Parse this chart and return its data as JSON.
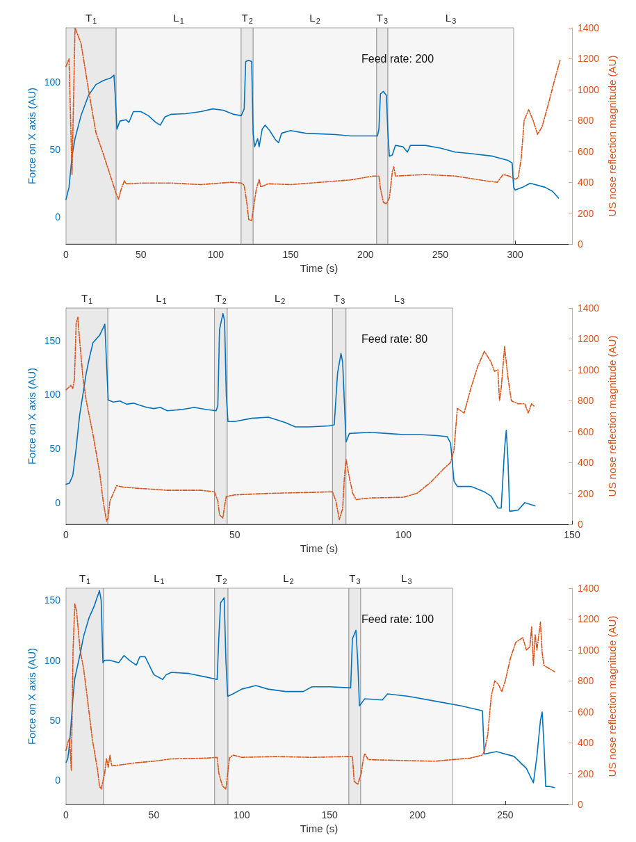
{
  "chart_data": [
    {
      "type": "line",
      "xlabel": "Time (s)",
      "ylabel": "Force on X axis (AU)",
      "y2label": "US nose reflection magnitude (AU)",
      "annotations": [
        "Feed rate: 200"
      ],
      "xlim": [
        0,
        338
      ],
      "xticks": [
        0,
        50,
        100,
        150,
        200,
        250,
        300
      ],
      "ylim": [
        -20,
        140
      ],
      "yticks": [
        0,
        50,
        100
      ],
      "y2lim": [
        0,
        1400
      ],
      "y2ticks": [
        0,
        200,
        400,
        600,
        800,
        1000,
        1200,
        1400
      ],
      "bands": [
        {
          "axis": "x",
          "from": 0,
          "to": 33.5,
          "label": "T$_{1}$"
        },
        {
          "axis": "x",
          "from": 33.5,
          "to": 117,
          "label": "L$_{1}$"
        },
        {
          "axis": "x",
          "from": 117,
          "to": 125,
          "label": "T$_{2}$"
        },
        {
          "axis": "x",
          "from": 125,
          "to": 207.5,
          "label": "L$_{2}$"
        },
        {
          "axis": "x",
          "from": 207.5,
          "to": 215,
          "label": "T$_{3}$"
        },
        {
          "axis": "x",
          "from": 215,
          "to": 299,
          "label": "L$_{3}$"
        }
      ],
      "series": [
        {
          "color": "#0072bd",
          "line_style": "solid",
          "x": [
            0,
            2,
            4,
            6,
            10,
            15,
            20,
            25,
            30,
            32,
            33,
            34,
            36,
            40,
            42,
            45,
            50,
            55,
            60,
            63,
            66,
            70,
            80,
            90,
            98,
            105,
            112,
            117,
            119,
            120,
            122,
            124,
            125,
            126,
            128,
            129,
            131,
            133,
            136,
            140,
            142,
            144,
            150,
            160,
            180,
            190,
            208,
            209,
            210,
            212,
            214,
            215,
            216,
            218,
            220,
            225,
            228,
            230,
            240,
            250,
            260,
            270,
            285,
            295,
            298,
            299,
            300,
            305,
            310,
            320,
            325,
            329
          ],
          "values": [
            13,
            22,
            45,
            58,
            75,
            90,
            98,
            101,
            103,
            105,
            88,
            65,
            71,
            72,
            70,
            78,
            78,
            75,
            70,
            68,
            74,
            76,
            76.5,
            78,
            80,
            79,
            76,
            75,
            80,
            115,
            116,
            115,
            62,
            52,
            58,
            52,
            65,
            68,
            64,
            57,
            55,
            62,
            64,
            62,
            61,
            60,
            60,
            65,
            91,
            93,
            90,
            62,
            45,
            46,
            53,
            52,
            48,
            53,
            53,
            51,
            48,
            47,
            45,
            42,
            40,
            22,
            20,
            22,
            25,
            22,
            19,
            14
          ]
        },
        {
          "color": "#d95319",
          "line_style": "dashed",
          "axis": "y2",
          "x": [
            0,
            2,
            4,
            6,
            10,
            15,
            20,
            25,
            30,
            33,
            35,
            37,
            39,
            40,
            50,
            70,
            90,
            110,
            117,
            119,
            121,
            122,
            124,
            125,
            127,
            129,
            130,
            135,
            150,
            170,
            190,
            205,
            209,
            210,
            212,
            214,
            216,
            218,
            219,
            220,
            240,
            260,
            280,
            288,
            292,
            296,
            300,
            302,
            304,
            306,
            309,
            312,
            315,
            318,
            322,
            326,
            330
          ],
          "values": [
            1150,
            1200,
            450,
            1400,
            1300,
            1000,
            720,
            580,
            430,
            340,
            290,
            360,
            410,
            390,
            395,
            395,
            385,
            400,
            395,
            380,
            250,
            160,
            150,
            220,
            350,
            420,
            370,
            390,
            385,
            400,
            415,
            440,
            440,
            360,
            270,
            260,
            300,
            470,
            500,
            440,
            450,
            440,
            410,
            400,
            450,
            440,
            420,
            430,
            550,
            800,
            870,
            800,
            710,
            760,
            900,
            1050,
            1190
          ]
        }
      ]
    },
    {
      "type": "line",
      "xlabel": "Time (s)",
      "ylabel": "Force on X axis (AU)",
      "y2label": "US nose reflection magnitude (AU)",
      "annotations": [
        "Feed rate: 80"
      ],
      "xlim": [
        0,
        150
      ],
      "xticks": [
        0,
        50,
        100,
        150
      ],
      "ylim": [
        -20,
        180
      ],
      "yticks": [
        0,
        50,
        100,
        150
      ],
      "y2lim": [
        0,
        1400
      ],
      "y2ticks": [
        0,
        200,
        400,
        600,
        800,
        1000,
        1200,
        1400
      ],
      "bands": [
        {
          "axis": "x",
          "from": 0,
          "to": 12.4,
          "label": "T$_{1}$"
        },
        {
          "axis": "x",
          "from": 12.4,
          "to": 44,
          "label": "L$_{1}$"
        },
        {
          "axis": "x",
          "from": 44,
          "to": 47.8,
          "label": "T$_{2}$"
        },
        {
          "axis": "x",
          "from": 47.8,
          "to": 79,
          "label": "L$_{2}$"
        },
        {
          "axis": "x",
          "from": 79,
          "to": 83,
          "label": "T$_{3}$"
        },
        {
          "axis": "x",
          "from": 83,
          "to": 114.6,
          "label": "L$_{3}$"
        }
      ],
      "series": [
        {
          "color": "#0072bd",
          "line_style": "solid",
          "x": [
            0,
            1,
            2,
            3,
            4,
            5,
            6,
            7,
            8,
            10,
            11.5,
            12,
            12.5,
            14,
            16,
            18,
            20,
            22,
            24,
            26,
            28,
            30,
            34,
            38,
            42,
            44.5,
            45,
            45.5,
            46.5,
            47,
            47.5,
            48,
            50,
            55,
            60,
            65,
            68,
            72,
            78,
            79.5,
            80.5,
            81.5,
            82,
            83,
            84,
            90,
            95,
            100,
            105,
            110,
            113,
            114,
            115,
            116,
            120,
            124,
            126,
            128,
            129,
            130,
            130.5,
            131,
            131.5,
            134,
            136,
            139
          ],
          "values": [
            17,
            18,
            25,
            50,
            80,
            100,
            120,
            135,
            148,
            155,
            165,
            130,
            95,
            93,
            94,
            91,
            92,
            90,
            88,
            87,
            88,
            85,
            86,
            88,
            86,
            85,
            90,
            160,
            175,
            168,
            100,
            75,
            75,
            78,
            79,
            74,
            70,
            70,
            71,
            72,
            120,
            138,
            130,
            56,
            64,
            65,
            64,
            63,
            63,
            62,
            61,
            55,
            20,
            15,
            15,
            10,
            6,
            -5,
            -5,
            50,
            67,
            40,
            -8,
            -7,
            0,
            -3
          ]
        },
        {
          "color": "#d95319",
          "line_style": "dashed",
          "axis": "y2",
          "x": [
            0,
            1.5,
            2,
            2.5,
            3,
            3.5,
            4,
            5,
            6,
            8,
            10,
            11,
            12,
            12.5,
            13,
            14,
            15,
            17,
            20,
            30,
            40,
            44,
            45,
            45.5,
            46.5,
            47,
            47.5,
            50,
            60,
            70,
            79,
            80,
            81,
            82,
            82.5,
            83,
            84,
            85,
            86,
            90,
            100,
            104,
            108,
            112,
            114,
            115,
            116,
            118,
            120,
            122,
            124,
            126,
            127,
            128,
            128.5,
            129,
            130,
            131,
            132,
            134,
            136,
            137,
            138,
            139
          ],
          "values": [
            870,
            900,
            880,
            940,
            1300,
            1340,
            1200,
            950,
            800,
            580,
            330,
            150,
            20,
            40,
            150,
            200,
            250,
            240,
            235,
            220,
            220,
            210,
            150,
            60,
            40,
            120,
            180,
            190,
            200,
            205,
            210,
            150,
            30,
            100,
            300,
            420,
            300,
            200,
            160,
            170,
            175,
            200,
            270,
            360,
            400,
            480,
            750,
            720,
            880,
            1020,
            1120,
            1050,
            990,
            1000,
            800,
            880,
            1150,
            950,
            800,
            780,
            780,
            720,
            780,
            760
          ]
        }
      ]
    },
    {
      "type": "line",
      "xlabel": "Time (s)",
      "ylabel": "Force on X axis (AU)",
      "y2label": "US nose reflection magnitude (AU)",
      "annotations": [
        "Feed rate: 100"
      ],
      "xlim": [
        0,
        288
      ],
      "xticks": [
        0,
        50,
        100,
        150,
        200,
        250
      ],
      "ylim": [
        -20,
        160
      ],
      "yticks": [
        0,
        50,
        100,
        150
      ],
      "y2lim": [
        0,
        1400
      ],
      "y2ticks": [
        0,
        200,
        400,
        600,
        800,
        1000,
        1200,
        1400
      ],
      "bands": [
        {
          "axis": "x",
          "from": 0,
          "to": 21.4,
          "label": "T$_{1}$"
        },
        {
          "axis": "x",
          "from": 21.4,
          "to": 84.6,
          "label": "L$_{1}$"
        },
        {
          "axis": "x",
          "from": 84.6,
          "to": 92.2,
          "label": "T$_{2}$"
        },
        {
          "axis": "x",
          "from": 92.2,
          "to": 161,
          "label": "L$_{2}$"
        },
        {
          "axis": "x",
          "from": 161,
          "to": 167.7,
          "label": "T$_{3}$"
        },
        {
          "axis": "x",
          "from": 167.7,
          "to": 220,
          "label": "L$_{3}$"
        }
      ],
      "series": [
        {
          "color": "#0072bd",
          "line_style": "solid",
          "x": [
            0,
            1,
            2,
            3,
            4,
            5,
            8,
            10,
            13,
            16,
            19,
            20,
            21,
            22,
            25,
            30,
            33,
            36,
            40,
            42,
            45,
            47,
            50,
            55,
            57,
            60,
            70,
            80,
            86,
            87,
            88,
            90,
            91,
            92,
            95,
            100,
            108,
            115,
            125,
            135,
            140,
            150,
            162,
            163,
            165,
            166,
            167,
            168,
            170,
            180,
            183,
            195,
            210,
            225,
            237,
            238,
            245,
            255,
            262,
            266,
            268,
            270,
            271,
            272,
            273,
            275,
            278
          ],
          "values": [
            15,
            18,
            30,
            50,
            70,
            85,
            105,
            120,
            135,
            145,
            158,
            150,
            98,
            100,
            100,
            98,
            104,
            100,
            96,
            103,
            103,
            97,
            88,
            84,
            88,
            90,
            89,
            86,
            84,
            120,
            148,
            152,
            100,
            70,
            72,
            76,
            79,
            76,
            74,
            74,
            78,
            78,
            77,
            118,
            125,
            100,
            62,
            64,
            68,
            67,
            72,
            70,
            66,
            62,
            58,
            22,
            24,
            20,
            10,
            -2,
            20,
            50,
            57,
            30,
            -5,
            -5,
            -6
          ]
        },
        {
          "color": "#d95319",
          "line_style": "dashed",
          "axis": "y2",
          "x": [
            0,
            1,
            2,
            3,
            4,
            5,
            6,
            8,
            10,
            12,
            15,
            18,
            19,
            20,
            21,
            22,
            23,
            24,
            25,
            26,
            30,
            40,
            50,
            60,
            80,
            86,
            87,
            89,
            91,
            92,
            93,
            95,
            100,
            120,
            140,
            160,
            163,
            164,
            166,
            168,
            169,
            170,
            172,
            190,
            210,
            230,
            237,
            238,
            240,
            242,
            244,
            246,
            248,
            250,
            253,
            256,
            260,
            262,
            264,
            265,
            266,
            267,
            268,
            270,
            271,
            272,
            275,
            278
          ],
          "values": [
            350,
            400,
            430,
            220,
            1000,
            1300,
            1250,
            1000,
            880,
            700,
            420,
            220,
            120,
            100,
            150,
            200,
            300,
            240,
            320,
            250,
            255,
            270,
            280,
            295,
            300,
            305,
            200,
            120,
            100,
            200,
            300,
            320,
            305,
            310,
            305,
            310,
            310,
            150,
            130,
            200,
            280,
            330,
            290,
            285,
            280,
            300,
            320,
            340,
            450,
            700,
            800,
            780,
            730,
            800,
            950,
            1050,
            1080,
            1000,
            1020,
            1150,
            900,
            1100,
            1000,
            1180,
            980,
            900,
            880,
            860
          ]
        }
      ]
    }
  ]
}
